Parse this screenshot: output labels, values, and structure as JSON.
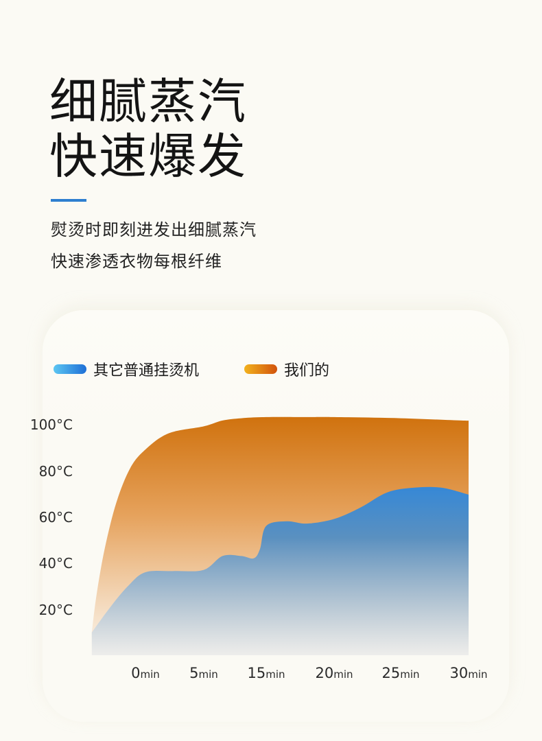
{
  "headline": {
    "line1": "细腻蒸汽",
    "line2": "快速爆发"
  },
  "subtitle": {
    "line1": "熨烫时即刻进发出细腻蒸汽",
    "line2": "快速渗透衣物每根纤维"
  },
  "colors": {
    "accent": "#2e7fd0",
    "ours": "#d67a14",
    "others": "#3a8ad6"
  },
  "chart_data": {
    "type": "area",
    "legend": [
      {
        "name": "其它普通挂烫机",
        "color": "#3a8ad6"
      },
      {
        "name": "我们的",
        "color": "#d67a14"
      }
    ],
    "legend_placement": "top-left",
    "y_ticks": [
      "100°C",
      "80°C",
      "60°C",
      "40°C",
      "20°C"
    ],
    "x_ticks": [
      {
        "num": "0",
        "unit": "min"
      },
      {
        "num": "5",
        "unit": "min"
      },
      {
        "num": "15",
        "unit": "min"
      },
      {
        "num": "20",
        "unit": "min"
      },
      {
        "num": "25",
        "unit": "min"
      },
      {
        "num": "30",
        "unit": "min"
      }
    ],
    "ylim": [
      10,
      110
    ],
    "series": [
      {
        "name": "我们的",
        "x": [
          -4.6,
          -4.2,
          -3.5,
          -2.5,
          -1.3,
          0,
          2,
          5,
          8,
          11,
          15,
          18,
          20,
          25,
          29.5,
          30
        ],
        "values": [
          10,
          26,
          46,
          66,
          81,
          89,
          96,
          99,
          101.5,
          102.5,
          103,
          103,
          103,
          102.5,
          101.5,
          101.5
        ]
      },
      {
        "name": "其它普通挂烫机",
        "x": [
          -4.6,
          -3,
          -1.5,
          0,
          2.5,
          5,
          8,
          11,
          13,
          14,
          15,
          16.5,
          18,
          20,
          22,
          24,
          26,
          28,
          30
        ],
        "values": [
          10,
          21,
          30,
          36,
          36.5,
          37,
          43,
          43,
          42,
          46,
          56,
          58,
          57,
          59,
          64,
          70.5,
          72.5,
          72.5,
          69.5
        ]
      }
    ]
  }
}
